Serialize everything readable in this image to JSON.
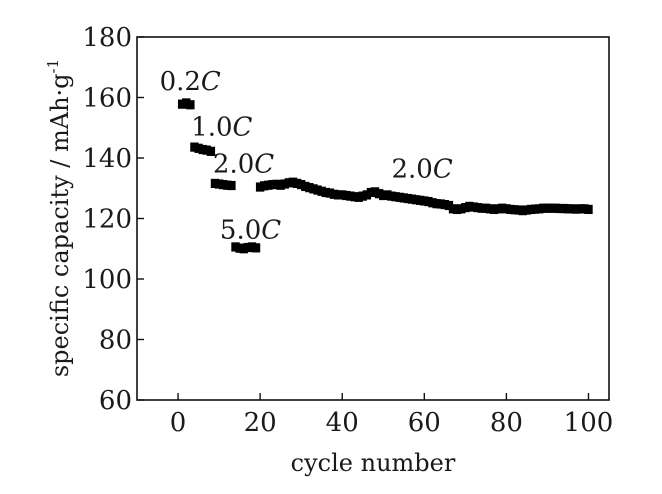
{
  "chart_data": {
    "type": "scatter",
    "title": "",
    "xlabel": "cycle number",
    "ylabel": "specific capacity / mAh·g",
    "ylabel_superscript": "-1",
    "xlim": [
      -10,
      105
    ],
    "ylim": [
      60,
      180
    ],
    "x_ticks": [
      0,
      20,
      40,
      60,
      80,
      100
    ],
    "y_ticks": [
      60,
      80,
      100,
      120,
      140,
      160,
      180
    ],
    "grid": false,
    "legend": "none",
    "marker_color": "#000000",
    "annotations": [
      {
        "value": "0.2",
        "unit": "C",
        "x": -4.5,
        "y": 162.5
      },
      {
        "value": "1.0",
        "unit": "C",
        "x": 3.2,
        "y": 147.5
      },
      {
        "value": "2.0",
        "unit": "C",
        "x": 8.5,
        "y": 135.2
      },
      {
        "value": "5.0",
        "unit": "C",
        "x": 10.2,
        "y": 113.4
      },
      {
        "value": "2.0",
        "unit": "C",
        "x": 52,
        "y": 133.5
      }
    ],
    "series": [
      {
        "x": [
          1,
          2,
          3,
          4,
          5,
          6,
          7,
          8,
          9,
          10,
          11,
          12,
          13,
          14,
          15,
          16,
          17,
          18,
          19,
          20,
          21,
          22,
          23,
          24,
          25,
          26,
          27,
          28,
          29,
          30,
          31,
          32,
          33,
          34,
          35,
          36,
          37,
          38,
          39,
          40,
          41,
          42,
          43,
          44,
          45,
          46,
          47,
          48,
          49,
          50,
          51,
          52,
          53,
          54,
          55,
          56,
          57,
          58,
          59,
          60,
          61,
          62,
          63,
          64,
          65,
          66,
          67,
          68,
          69,
          70,
          71,
          72,
          73,
          74,
          75,
          76,
          77,
          78,
          79,
          80,
          81,
          82,
          83,
          84,
          85,
          86,
          87,
          88,
          89,
          90,
          91,
          92,
          93,
          94,
          95,
          96,
          97,
          98,
          99,
          100
        ],
        "y": [
          157.8,
          158.2,
          157.6,
          143.6,
          143.2,
          142.8,
          142.6,
          142.2,
          131.6,
          131.4,
          131.2,
          131.0,
          130.9,
          110.6,
          110.2,
          110.0,
          110.4,
          110.6,
          110.3,
          130.4,
          130.8,
          131.0,
          131.2,
          131.3,
          131.0,
          131.4,
          131.8,
          132.0,
          131.6,
          131.2,
          130.6,
          130.2,
          129.8,
          129.4,
          129.0,
          128.6,
          128.4,
          128.0,
          127.8,
          127.8,
          127.6,
          127.4,
          127.2,
          127.0,
          127.4,
          127.8,
          128.6,
          128.8,
          128.2,
          127.6,
          127.8,
          127.4,
          127.2,
          127.0,
          126.8,
          126.6,
          126.4,
          126.2,
          126.0,
          125.8,
          125.6,
          125.2,
          124.9,
          124.8,
          124.6,
          124.3,
          123.2,
          123.0,
          123.2,
          123.6,
          124.0,
          123.8,
          123.6,
          123.4,
          123.4,
          123.2,
          123.0,
          123.2,
          123.4,
          123.2,
          123.0,
          122.9,
          122.8,
          122.6,
          122.8,
          123.0,
          123.1,
          123.2,
          123.4,
          123.4,
          123.4,
          123.4,
          123.3,
          123.3,
          123.2,
          123.2,
          123.1,
          123.2,
          123.2,
          123.0
        ]
      }
    ]
  }
}
